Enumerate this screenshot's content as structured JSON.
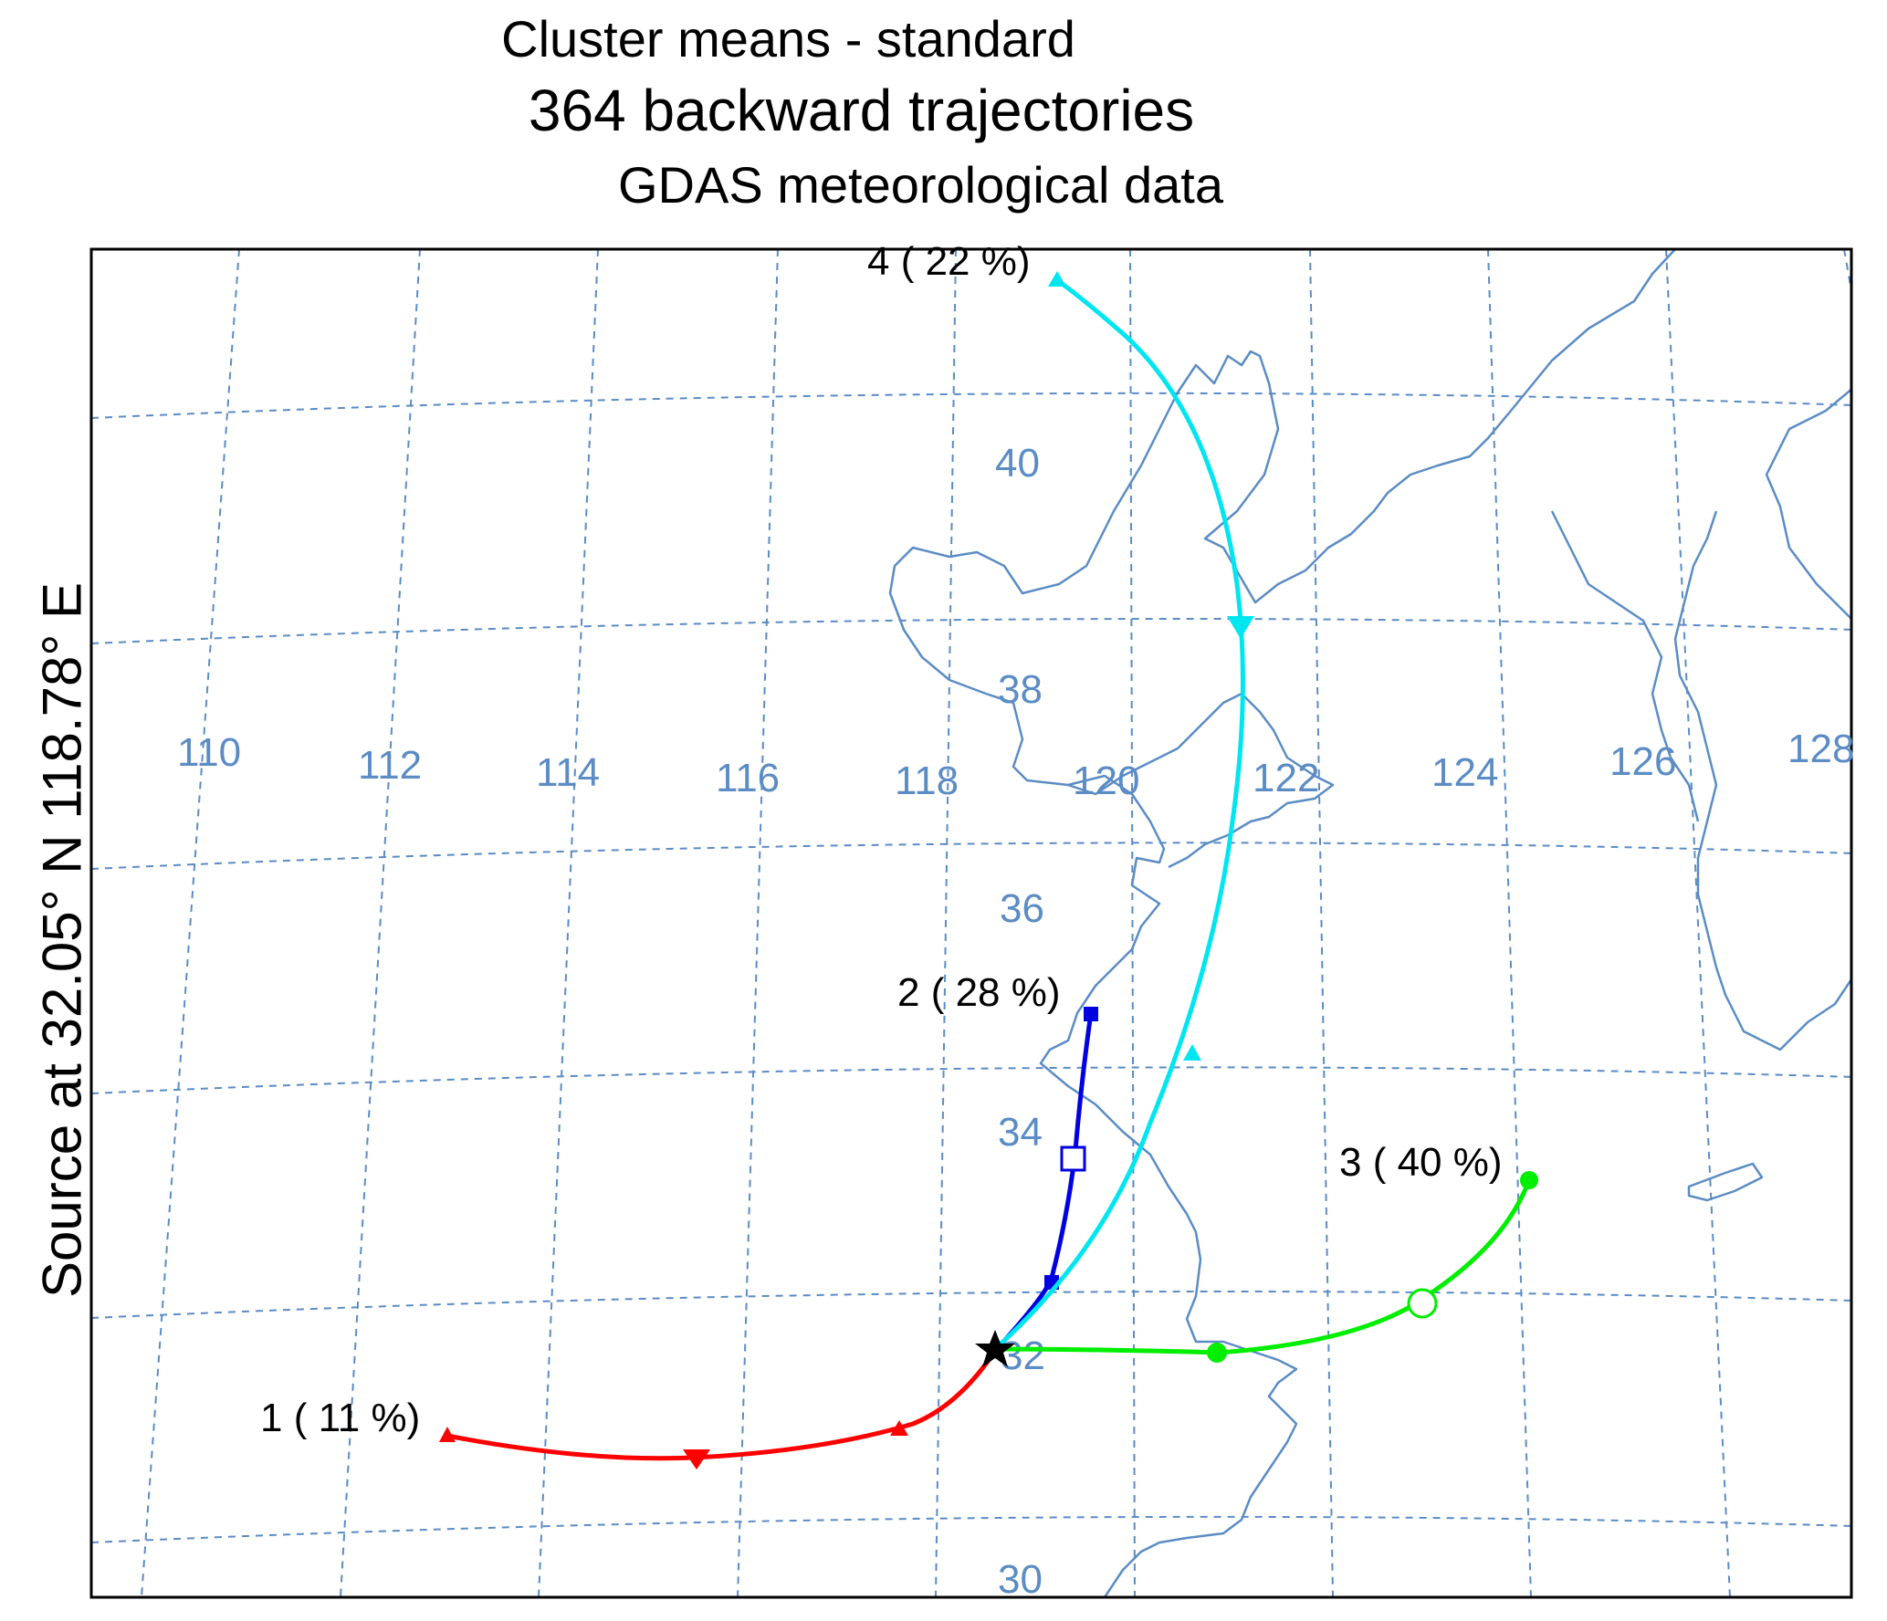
{
  "title": {
    "line1": "Cluster means - standard",
    "line2": "364 backward trajectories",
    "line3": "GDAS meteorological data"
  },
  "source_label": "Source at  32.05° N  118.78° E",
  "colors": {
    "grid": "#5b8cc4",
    "coast": "#5b8cc4",
    "cluster1": "#ff0000",
    "cluster2": "#0000e0",
    "cluster3": "#00ee00",
    "cluster4": "#00e6f0"
  },
  "longitude_labels": [
    "110",
    "112",
    "114",
    "116",
    "118",
    "120",
    "122",
    "124",
    "126",
    "128"
  ],
  "latitude_labels": [
    "40",
    "38",
    "36",
    "34",
    "32",
    "30"
  ],
  "clusters": [
    {
      "id": "1",
      "label": "1 ( 11 %)",
      "color": "#ff0000",
      "marker": "triangle"
    },
    {
      "id": "2",
      "label": "2 ( 28 %)",
      "color": "#0000e0",
      "marker": "square"
    },
    {
      "id": "3",
      "label": "3 ( 40 %)",
      "color": "#00ee00",
      "marker": "circle"
    },
    {
      "id": "4",
      "label": "4 ( 22 %)",
      "color": "#00e6f0",
      "marker": "triangle"
    }
  ],
  "source_marker": "star-icon"
}
